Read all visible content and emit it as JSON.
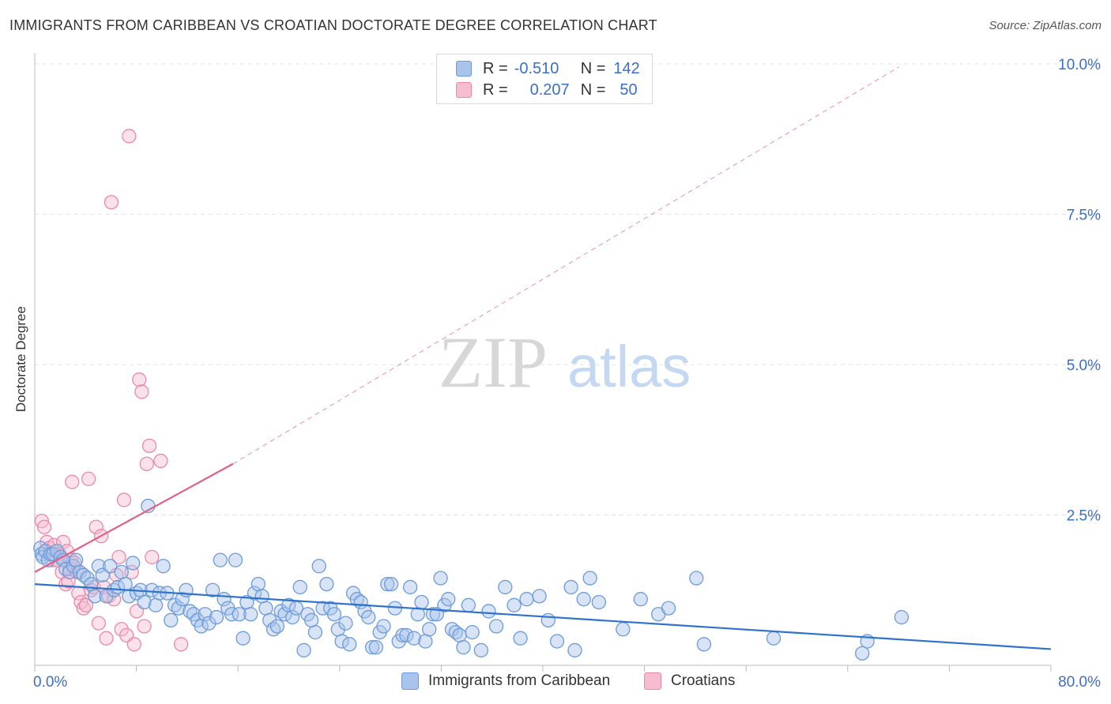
{
  "title": "IMMIGRANTS FROM CARIBBEAN VS CROATIAN DOCTORATE DEGREE CORRELATION CHART",
  "source": "Source: ZipAtlas.com",
  "watermark": {
    "zip": "ZIP",
    "atlas": "atlas"
  },
  "legend": {
    "r_label": "R =",
    "n_label": "N =",
    "series": [
      {
        "name": "Immigrants from Caribbean",
        "r": "-0.510",
        "n": "142",
        "fill": "#a9c4ec",
        "stroke": "#6c9bd8"
      },
      {
        "name": "Croatians",
        "r": "0.207",
        "n": "50",
        "fill": "#f6bdd0",
        "stroke": "#e989a8"
      }
    ]
  },
  "colors": {
    "blue_line": "#2f72cc",
    "pink_line": "#e0608a",
    "axis_text": "#3a6fc8",
    "grid": "#e3e3e3"
  },
  "chart_data": {
    "type": "scatter",
    "title": "IMMIGRANTS FROM CARIBBEAN VS CROATIAN DOCTORATE DEGREE CORRELATION CHART",
    "xlabel": "",
    "ylabel": "Doctorate Degree",
    "xlim": [
      0,
      80
    ],
    "ylim": [
      0,
      10.5
    ],
    "x_ticks_labels": [
      "0.0%",
      "80.0%"
    ],
    "y_ticks": [
      2.5,
      5.0,
      7.5,
      10.0
    ],
    "y_tick_labels": [
      "2.5%",
      "5.0%",
      "7.5%",
      "10.0%"
    ],
    "grid": true,
    "series": [
      {
        "name": "Immigrants from Caribbean",
        "trend": {
          "x": [
            0,
            80
          ],
          "y": [
            1.35,
            0.27
          ]
        },
        "points": [
          [
            0.2,
            1.95
          ],
          [
            0.3,
            1.85
          ],
          [
            0.4,
            1.8
          ],
          [
            0.6,
            1.9
          ],
          [
            0.8,
            1.75
          ],
          [
            1.0,
            1.85
          ],
          [
            1.2,
            1.85
          ],
          [
            1.5,
            1.9
          ],
          [
            1.8,
            1.8
          ],
          [
            2.0,
            1.75
          ],
          [
            2.2,
            1.6
          ],
          [
            2.5,
            1.55
          ],
          [
            2.8,
            1.65
          ],
          [
            3.0,
            1.75
          ],
          [
            3.3,
            1.55
          ],
          [
            3.6,
            1.5
          ],
          [
            3.9,
            1.45
          ],
          [
            4.2,
            1.35
          ],
          [
            4.5,
            1.15
          ],
          [
            4.8,
            1.65
          ],
          [
            5.1,
            1.5
          ],
          [
            5.4,
            1.15
          ],
          [
            5.7,
            1.65
          ],
          [
            6.0,
            1.25
          ],
          [
            6.3,
            1.3
          ],
          [
            6.6,
            1.55
          ],
          [
            6.9,
            1.35
          ],
          [
            7.2,
            1.15
          ],
          [
            7.5,
            1.7
          ],
          [
            7.8,
            1.2
          ],
          [
            8.1,
            1.25
          ],
          [
            8.4,
            1.05
          ],
          [
            8.7,
            2.65
          ],
          [
            9.0,
            1.25
          ],
          [
            9.3,
            1.0
          ],
          [
            9.6,
            1.2
          ],
          [
            9.9,
            1.65
          ],
          [
            10.2,
            1.2
          ],
          [
            10.5,
            0.75
          ],
          [
            10.8,
            1.0
          ],
          [
            11.1,
            0.95
          ],
          [
            11.4,
            1.1
          ],
          [
            11.7,
            1.25
          ],
          [
            12.0,
            0.9
          ],
          [
            12.3,
            0.85
          ],
          [
            12.6,
            0.75
          ],
          [
            12.9,
            0.65
          ],
          [
            13.2,
            0.85
          ],
          [
            13.5,
            0.7
          ],
          [
            13.8,
            1.25
          ],
          [
            14.1,
            0.8
          ],
          [
            14.4,
            1.75
          ],
          [
            14.7,
            1.1
          ],
          [
            15.0,
            0.95
          ],
          [
            15.3,
            0.85
          ],
          [
            15.6,
            1.75
          ],
          [
            15.9,
            0.85
          ],
          [
            16.2,
            0.45
          ],
          [
            16.5,
            1.05
          ],
          [
            16.8,
            0.85
          ],
          [
            17.1,
            1.2
          ],
          [
            17.4,
            1.35
          ],
          [
            17.7,
            1.15
          ],
          [
            18.0,
            0.95
          ],
          [
            18.3,
            0.75
          ],
          [
            18.6,
            0.6
          ],
          [
            18.9,
            0.65
          ],
          [
            19.2,
            0.9
          ],
          [
            19.5,
            0.85
          ],
          [
            19.8,
            1.0
          ],
          [
            20.1,
            0.8
          ],
          [
            20.4,
            0.95
          ],
          [
            20.7,
            1.3
          ],
          [
            21.0,
            0.25
          ],
          [
            21.3,
            0.85
          ],
          [
            21.6,
            0.75
          ],
          [
            21.9,
            0.55
          ],
          [
            22.2,
            1.65
          ],
          [
            22.5,
            0.95
          ],
          [
            22.8,
            1.35
          ],
          [
            23.1,
            0.95
          ],
          [
            23.4,
            0.85
          ],
          [
            23.7,
            0.6
          ],
          [
            24.0,
            0.4
          ],
          [
            24.3,
            0.7
          ],
          [
            24.6,
            0.35
          ],
          [
            24.9,
            1.2
          ],
          [
            25.2,
            1.1
          ],
          [
            25.5,
            1.05
          ],
          [
            25.8,
            0.9
          ],
          [
            26.1,
            0.8
          ],
          [
            26.4,
            0.3
          ],
          [
            26.7,
            0.3
          ],
          [
            27.0,
            0.55
          ],
          [
            27.3,
            0.65
          ],
          [
            27.6,
            1.35
          ],
          [
            27.9,
            1.35
          ],
          [
            28.2,
            0.95
          ],
          [
            28.5,
            0.4
          ],
          [
            28.8,
            0.5
          ],
          [
            29.1,
            0.5
          ],
          [
            29.4,
            1.3
          ],
          [
            29.7,
            0.45
          ],
          [
            30.0,
            0.85
          ],
          [
            30.3,
            1.05
          ],
          [
            30.6,
            0.4
          ],
          [
            30.9,
            0.6
          ],
          [
            31.2,
            0.85
          ],
          [
            31.5,
            0.85
          ],
          [
            31.8,
            1.45
          ],
          [
            32.1,
            1.0
          ],
          [
            32.4,
            1.1
          ],
          [
            32.7,
            0.6
          ],
          [
            33.0,
            0.55
          ],
          [
            33.3,
            0.5
          ],
          [
            33.6,
            0.3
          ],
          [
            34.0,
            1.0
          ],
          [
            34.3,
            0.55
          ],
          [
            35.0,
            0.25
          ],
          [
            35.6,
            0.9
          ],
          [
            36.2,
            0.65
          ],
          [
            36.9,
            1.3
          ],
          [
            37.6,
            1.0
          ],
          [
            38.1,
            0.45
          ],
          [
            38.6,
            1.1
          ],
          [
            39.6,
            1.15
          ],
          [
            40.3,
            0.75
          ],
          [
            41.0,
            0.4
          ],
          [
            42.1,
            1.3
          ],
          [
            42.4,
            0.25
          ],
          [
            43.1,
            1.1
          ],
          [
            43.6,
            1.45
          ],
          [
            44.3,
            1.05
          ],
          [
            46.2,
            0.6
          ],
          [
            47.6,
            1.1
          ],
          [
            49.0,
            0.85
          ],
          [
            49.8,
            0.95
          ],
          [
            52.0,
            1.45
          ],
          [
            52.6,
            0.35
          ],
          [
            58.1,
            0.45
          ],
          [
            65.1,
            0.2
          ],
          [
            65.5,
            0.4
          ],
          [
            68.2,
            0.8
          ]
        ]
      },
      {
        "name": "Croatians",
        "trend": {
          "x": [
            0,
            15.4
          ],
          "y": [
            1.55,
            3.35
          ],
          "dash_to": [
            68,
            9.95
          ]
        },
        "points": [
          [
            0.3,
            2.4
          ],
          [
            0.5,
            2.3
          ],
          [
            0.7,
            2.05
          ],
          [
            0.9,
            1.95
          ],
          [
            1.1,
            1.75
          ],
          [
            1.3,
            2.0
          ],
          [
            1.5,
            1.75
          ],
          [
            1.7,
            1.85
          ],
          [
            1.9,
            1.55
          ],
          [
            2.0,
            2.05
          ],
          [
            2.2,
            1.35
          ],
          [
            2.3,
            1.9
          ],
          [
            2.4,
            1.4
          ],
          [
            2.5,
            1.6
          ],
          [
            2.6,
            1.75
          ],
          [
            2.7,
            3.05
          ],
          [
            2.9,
            1.7
          ],
          [
            3.1,
            1.55
          ],
          [
            3.2,
            1.2
          ],
          [
            3.4,
            1.05
          ],
          [
            3.6,
            0.95
          ],
          [
            3.8,
            1.0
          ],
          [
            4.0,
            3.1
          ],
          [
            4.2,
            1.25
          ],
          [
            4.4,
            1.3
          ],
          [
            4.6,
            2.3
          ],
          [
            4.8,
            0.7
          ],
          [
            5.0,
            2.15
          ],
          [
            5.2,
            1.3
          ],
          [
            5.4,
            0.45
          ],
          [
            5.6,
            1.15
          ],
          [
            5.8,
            7.7
          ],
          [
            6.0,
            1.1
          ],
          [
            6.2,
            1.5
          ],
          [
            6.4,
            1.8
          ],
          [
            6.6,
            0.6
          ],
          [
            6.8,
            2.75
          ],
          [
            7.0,
            0.5
          ],
          [
            7.2,
            8.8
          ],
          [
            7.4,
            1.55
          ],
          [
            7.6,
            0.35
          ],
          [
            7.8,
            0.9
          ],
          [
            8.0,
            4.75
          ],
          [
            8.2,
            4.55
          ],
          [
            8.4,
            0.65
          ],
          [
            8.6,
            3.35
          ],
          [
            8.8,
            3.65
          ],
          [
            9.0,
            1.8
          ],
          [
            9.7,
            3.4
          ],
          [
            11.3,
            0.35
          ]
        ]
      }
    ]
  }
}
